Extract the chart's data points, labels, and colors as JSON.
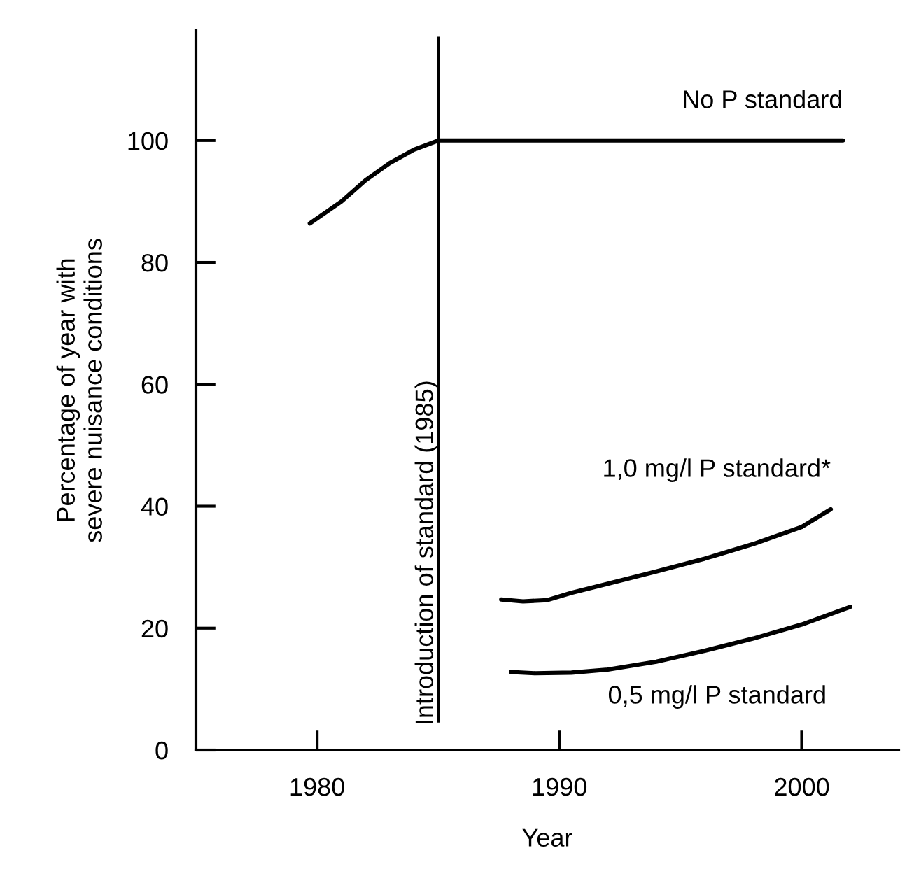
{
  "chart_data": {
    "type": "line",
    "xlabel": "Year",
    "ylabel": "Percentage of year with\nsevere nuisance conditions",
    "xlim": [
      1975,
      2004
    ],
    "ylim": [
      0,
      118
    ],
    "xticks": [
      1980,
      1990,
      2000
    ],
    "yticks": [
      0,
      20,
      40,
      60,
      80,
      100
    ],
    "grid": false,
    "legend": false,
    "marker": "none",
    "line_style": "solid",
    "series": [
      {
        "name": "No P standard",
        "color": "#000000",
        "x": [
          1979.7,
          1981,
          1982,
          1983,
          1984,
          1985,
          1990,
          1995,
          2001.7
        ],
        "values": [
          86.4,
          90,
          93.5,
          96.3,
          98.5,
          100,
          100,
          100,
          100
        ]
      },
      {
        "name": "1,0 mg/l P standard*",
        "color": "#000000",
        "x": [
          1987.6,
          1988.5,
          1989.5,
          1990.5,
          1992,
          1994,
          1996,
          1998,
          2000,
          2001.2
        ],
        "values": [
          24.7,
          24.4,
          24.6,
          25.8,
          27.3,
          29.3,
          31.4,
          33.8,
          36.6,
          39.5
        ]
      },
      {
        "name": "0,5 mg/l P standard",
        "color": "#000000",
        "x": [
          1988,
          1989,
          1990.5,
          1992,
          1994,
          1996,
          1998,
          2000,
          2002
        ],
        "values": [
          12.8,
          12.6,
          12.7,
          13.2,
          14.5,
          16.3,
          18.3,
          20.6,
          23.5
        ]
      }
    ],
    "ref_lines": [
      {
        "axis": "x",
        "value": 1985,
        "label": "Introduction of standard (1985)",
        "color": "#000000",
        "line_style": "solid"
      }
    ]
  }
}
